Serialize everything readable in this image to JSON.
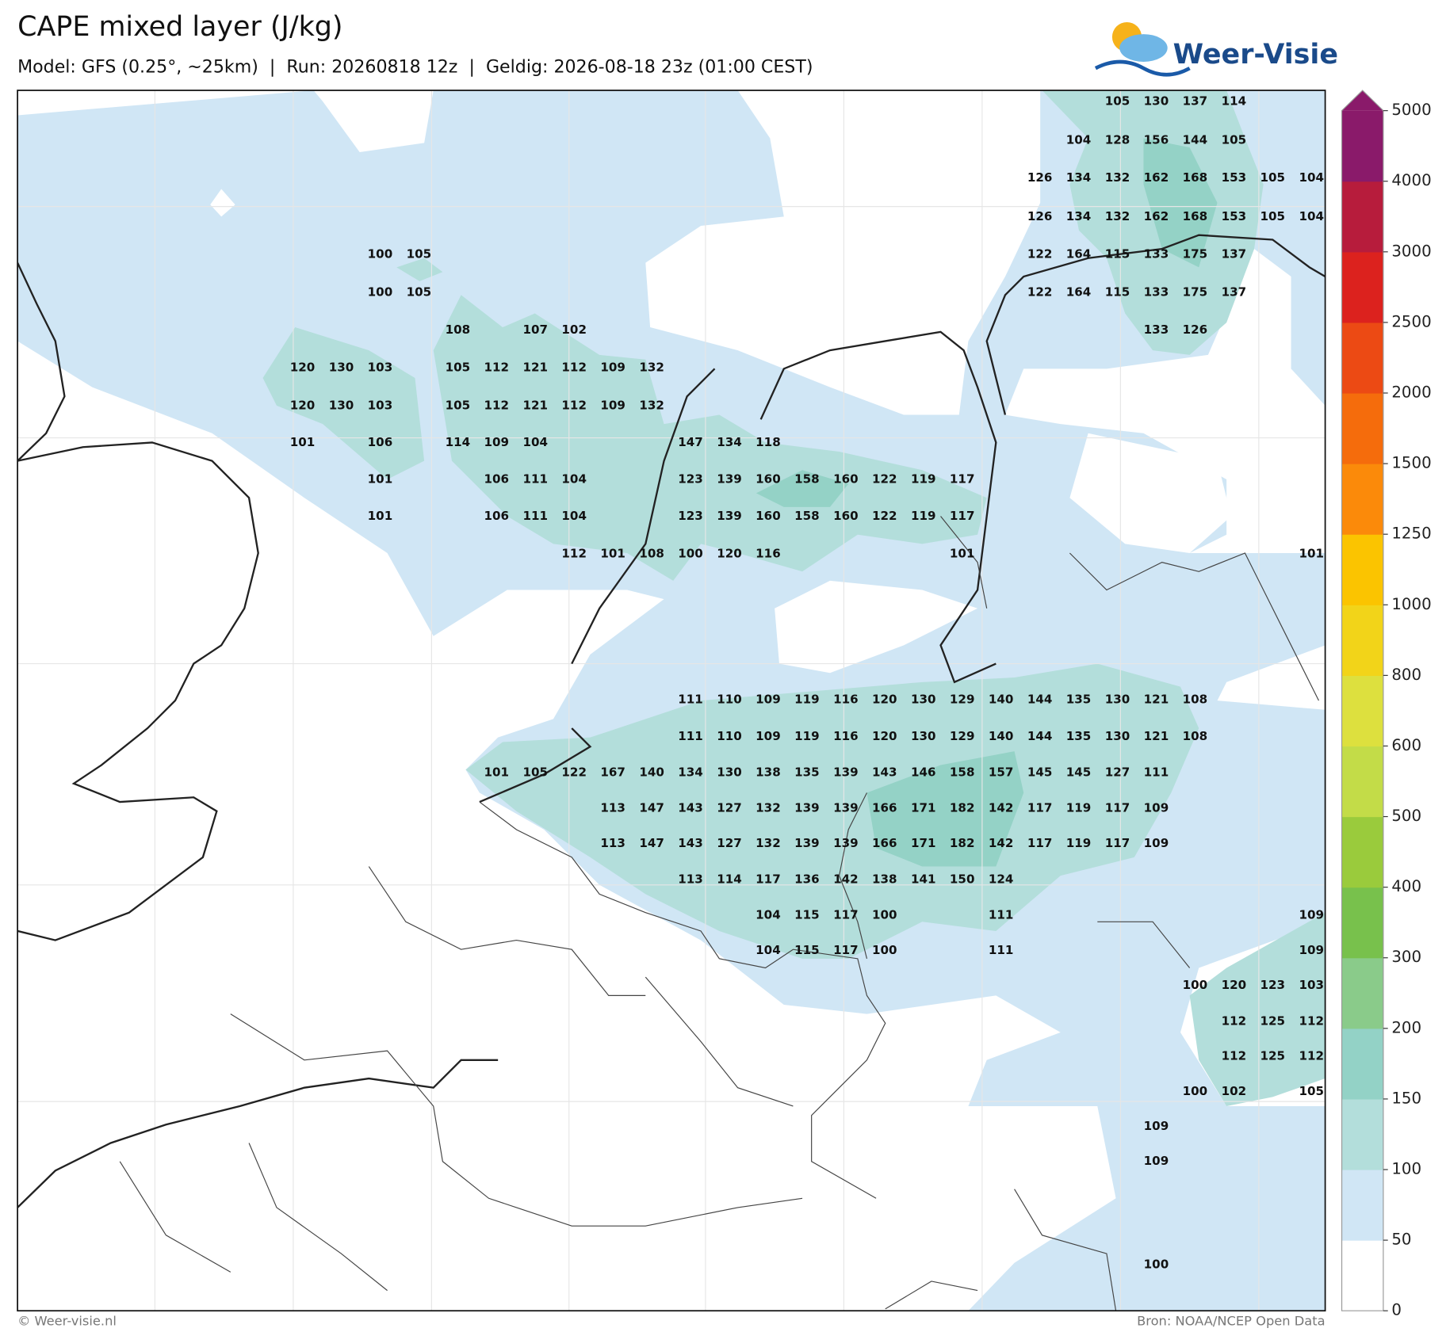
{
  "header": {
    "title": "CAPE mixed layer (J/kg)",
    "subtitle": "Model: GFS (0.25°, ~25km)  |  Run: 20260818 12z  |  Geldig: 2026-08-18 23z (01:00 CEST)"
  },
  "logo": {
    "text": "Weer-Visie"
  },
  "colorbar": {
    "ticks": [
      0,
      50,
      100,
      150,
      200,
      300,
      400,
      500,
      600,
      800,
      1000,
      1250,
      1500,
      2000,
      2500,
      3000,
      4000,
      5000
    ],
    "colors": [
      "#ffffff",
      "#d0e6f5",
      "#b3dedb",
      "#93d2c6",
      "#8acb8a",
      "#78c14c",
      "#9acb3c",
      "#c3dc48",
      "#dde03e",
      "#f2d419",
      "#fbc400",
      "#fb8a0a",
      "#f56c0c",
      "#ec4a14",
      "#dc221e",
      "#b71c3c",
      "#8a1a6a"
    ],
    "extend_color": "#8a1a6a"
  },
  "map": {
    "labels": [
      [
        105,
        130,
        137,
        114
      ],
      [
        104,
        128,
        156,
        144,
        105
      ],
      [
        126,
        134,
        132,
        162,
        168,
        153,
        105,
        104
      ],
      [
        126,
        134,
        132,
        162,
        168,
        153,
        105,
        104
      ],
      [
        100,
        105,
        122,
        164,
        115,
        133,
        175,
        137
      ],
      [
        100,
        105,
        122,
        164,
        115,
        133,
        175,
        137
      ],
      [
        108,
        107,
        102,
        133,
        126
      ],
      [
        120,
        130,
        103,
        105,
        112,
        121,
        112,
        109,
        132
      ],
      [
        120,
        130,
        103,
        105,
        112,
        121,
        112,
        109,
        132
      ],
      [
        101,
        106,
        114,
        109,
        104,
        147,
        134,
        118
      ],
      [
        101,
        106,
        111,
        104,
        123,
        139,
        160,
        158,
        160,
        122,
        119,
        117
      ],
      [
        101,
        106,
        111,
        104,
        123,
        139,
        160,
        158,
        160,
        122,
        119,
        117
      ],
      [
        112,
        101,
        108,
        100,
        120,
        116,
        101,
        101
      ],
      [
        111,
        110,
        109,
        119,
        116,
        120,
        130,
        129,
        140,
        144,
        135,
        130,
        121,
        108
      ],
      [
        111,
        110,
        109,
        119,
        116,
        120,
        130,
        129,
        140,
        144,
        135,
        130,
        121,
        108
      ],
      [
        101,
        105,
        122,
        167,
        140,
        134,
        130,
        138,
        135,
        139,
        143,
        146,
        158,
        157,
        145,
        145,
        127,
        111
      ],
      [
        113,
        147,
        143,
        127,
        132,
        139,
        139,
        166,
        171,
        182,
        142,
        117,
        119,
        117,
        109
      ],
      [
        113,
        147,
        143,
        127,
        132,
        139,
        139,
        166,
        171,
        182,
        142,
        117,
        119,
        117,
        109
      ],
      [
        113,
        114,
        117,
        136,
        142,
        138,
        141,
        150,
        124
      ],
      [
        104,
        115,
        117,
        100,
        111,
        109
      ],
      [
        104,
        115,
        117,
        100,
        111,
        109
      ],
      [
        100,
        120,
        123,
        103
      ],
      [
        112,
        125,
        112
      ],
      [
        112,
        125,
        112
      ],
      [
        100,
        102,
        105
      ],
      [
        109
      ],
      [
        109
      ],
      [
        100
      ]
    ]
  },
  "footer": {
    "copyright": "© Weer-visie.nl",
    "source": "Bron: NOAA/NCEP Open Data"
  }
}
